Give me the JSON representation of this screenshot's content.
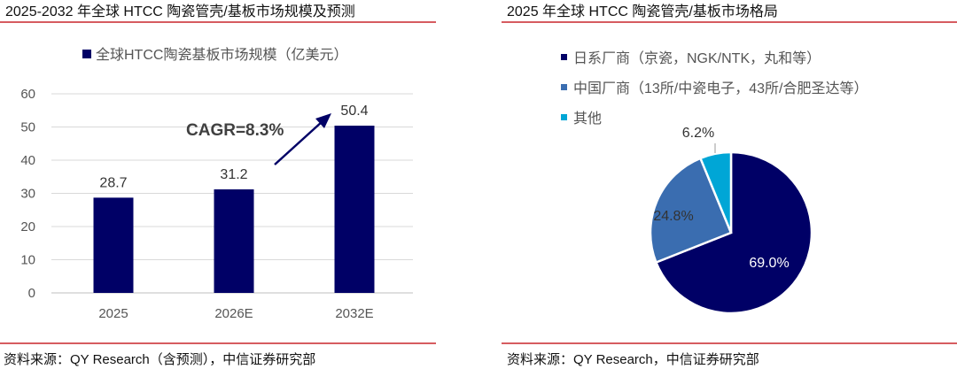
{
  "colors": {
    "rule": "#c8262c",
    "navy": "#000066",
    "blue": "#3a6db0",
    "cyan": "#00a6d6",
    "grid": "#d9d9d9"
  },
  "chart_data": [
    {
      "type": "bar",
      "title": "2025-2032 年全球 HTCC 陶瓷管壳/基板市场规模及预测",
      "categories": [
        "2025",
        "2026E",
        "2032E"
      ],
      "series": [
        {
          "name": "全球HTCC陶瓷基板市场规模（亿美元）",
          "values": [
            28.7,
            31.2,
            50.4
          ]
        }
      ],
      "data_labels": [
        "28.7",
        "31.2",
        "50.4"
      ],
      "ylim": [
        0,
        60
      ],
      "yticks": [
        "0",
        "10",
        "20",
        "30",
        "40",
        "50",
        "60"
      ],
      "grid": true,
      "legend": "top",
      "annotation": "CAGR=8.3%",
      "source": "资料来源：QY Research（含预测），中信证券研究部"
    },
    {
      "type": "pie",
      "title": "2025 年全球 HTCC 陶瓷管壳/基板市场格局",
      "slices": [
        {
          "name": "日系厂商（京瓷，NGK/NTK，丸和等）",
          "value": 69.0,
          "label": "69.0%"
        },
        {
          "name": "中国厂商（13所/中瓷电子，43所/合肥圣达等）",
          "value": 24.8,
          "label": "24.8%"
        },
        {
          "name": "其他",
          "value": 6.2,
          "label": "6.2%"
        }
      ],
      "legend": "top",
      "source": "资料来源：QY Research，中信证券研究部"
    }
  ]
}
